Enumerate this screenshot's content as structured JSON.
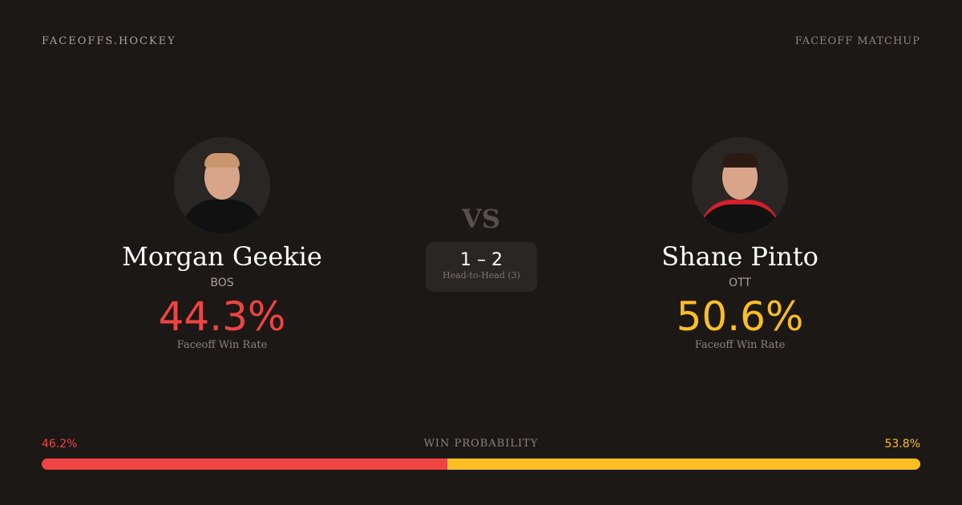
{
  "header": {
    "brand": "FACEOFFS.HOCKEY",
    "tag": "FACEOFF MATCHUP"
  },
  "players": [
    {
      "name": "Morgan Geekie",
      "team": "BOS",
      "rate": "44.3%",
      "rate_label": "Faceoff Win Rate",
      "color": "#ef4444"
    },
    {
      "name": "Shane Pinto",
      "team": "OTT",
      "rate": "50.6%",
      "rate_label": "Faceoff Win Rate",
      "color": "#fbbf24"
    }
  ],
  "vs": "VS",
  "head_to_head": {
    "score": "1 – 2",
    "label": "Head-to-Head (3)"
  },
  "win_probability": {
    "label": "WIN PROBABILITY",
    "left": "46.2%",
    "right": "53.8%",
    "left_value": 46.2,
    "right_value": 53.8
  }
}
